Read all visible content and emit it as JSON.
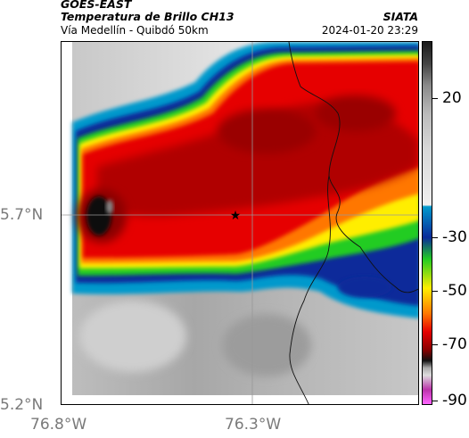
{
  "header": {
    "satellite": "GOES-EAST",
    "product": "Temperatura de Brillo CH13",
    "route": "Vía Medellín - Quibdó 50km",
    "organization": "SIATA",
    "datetime": "2024-01-20 23:29"
  },
  "axes": {
    "lat_ticks": [
      "5.7°N",
      "5.2°N"
    ],
    "lon_ticks": [
      "76.8°W",
      "76.3°W"
    ]
  },
  "colorbar": {
    "labels": [
      "20",
      "-30",
      "-50",
      "-70",
      "-90"
    ],
    "colors": {
      "warm_gray": "#d9d9d9",
      "cold_cyan": "#0099cc",
      "blue": "#0a2a9a",
      "green": "#22cc22",
      "yellow": "#ffee00",
      "orange": "#ff7700",
      "red": "#e60000",
      "dark_red": "#8a0000",
      "black": "#111111",
      "magenta": "#bb33aa"
    }
  },
  "map": {
    "marker": "star-marker",
    "feature": "department-border"
  }
}
